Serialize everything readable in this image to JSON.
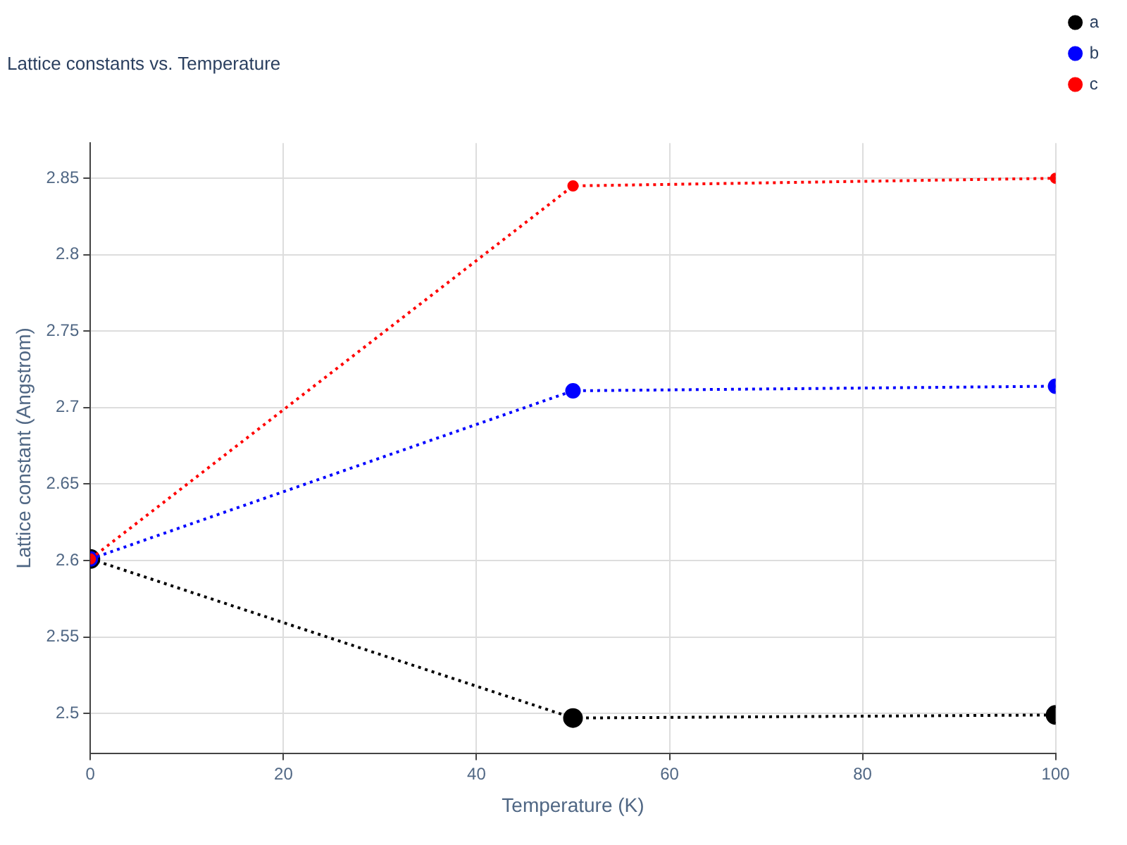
{
  "chart_data": {
    "type": "line",
    "title": "Lattice constants vs. Temperature",
    "xlabel": "Temperature (K)",
    "ylabel": "Lattice constant (Angstrom)",
    "x": [
      0,
      50,
      100
    ],
    "series": [
      {
        "name": "a",
        "color": "#000000",
        "values": [
          2.601,
          2.497,
          2.499
        ]
      },
      {
        "name": "b",
        "color": "#0000ff",
        "values": [
          2.601,
          2.711,
          2.714
        ]
      },
      {
        "name": "c",
        "color": "#ff0000",
        "values": [
          2.601,
          2.845,
          2.85
        ]
      }
    ],
    "xlim": [
      0,
      100
    ],
    "xticks": [
      0,
      20,
      40,
      60,
      80,
      100
    ],
    "ylim": [
      2.474,
      2.873
    ],
    "yticks": [
      2.5,
      2.55,
      2.6,
      2.65,
      2.7,
      2.75,
      2.8,
      2.85
    ],
    "grid": true,
    "legend": "top right",
    "marker": "circle",
    "line_style": "dotted"
  }
}
